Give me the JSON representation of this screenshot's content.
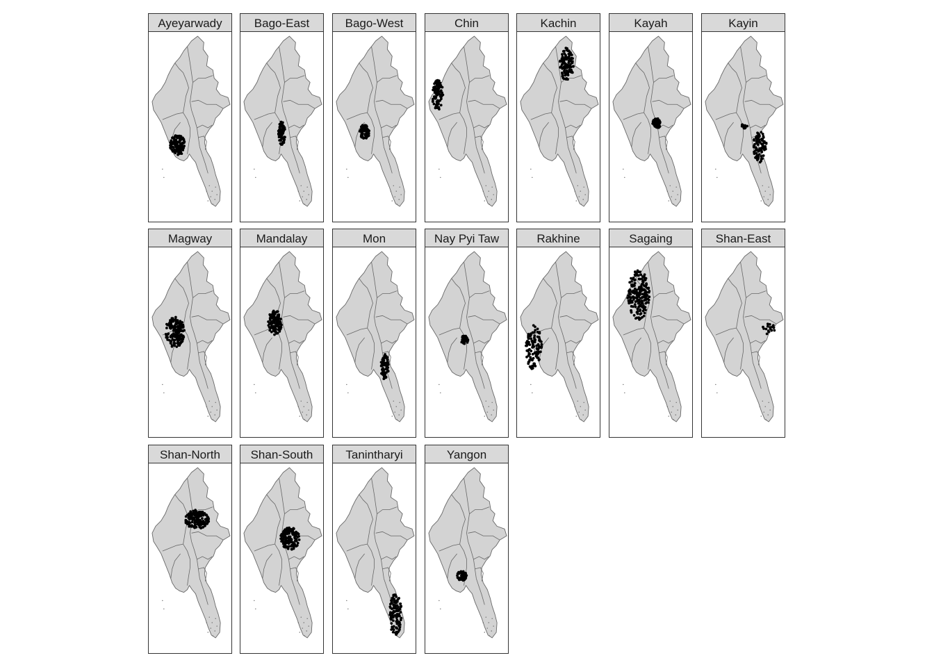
{
  "figure": {
    "style": {
      "map_fill": "#d3d3d3",
      "border_color": "#666666",
      "point_color": "#000000",
      "strip_fill": "#d9d9d9"
    }
  },
  "panels": [
    {
      "name": "Ayeyarwady"
    },
    {
      "name": "Bago-East"
    },
    {
      "name": "Bago-West"
    },
    {
      "name": "Chin"
    },
    {
      "name": "Kachin"
    },
    {
      "name": "Kayah"
    },
    {
      "name": "Kayin"
    },
    {
      "name": "Magway"
    },
    {
      "name": "Mandalay"
    },
    {
      "name": "Mon"
    },
    {
      "name": "Nay Pyi Taw"
    },
    {
      "name": "Rakhine"
    },
    {
      "name": "Sagaing"
    },
    {
      "name": "Shan-East"
    },
    {
      "name": "Shan-North"
    },
    {
      "name": "Shan-South"
    },
    {
      "name": "Tanintharyi"
    },
    {
      "name": "Yangon"
    }
  ]
}
